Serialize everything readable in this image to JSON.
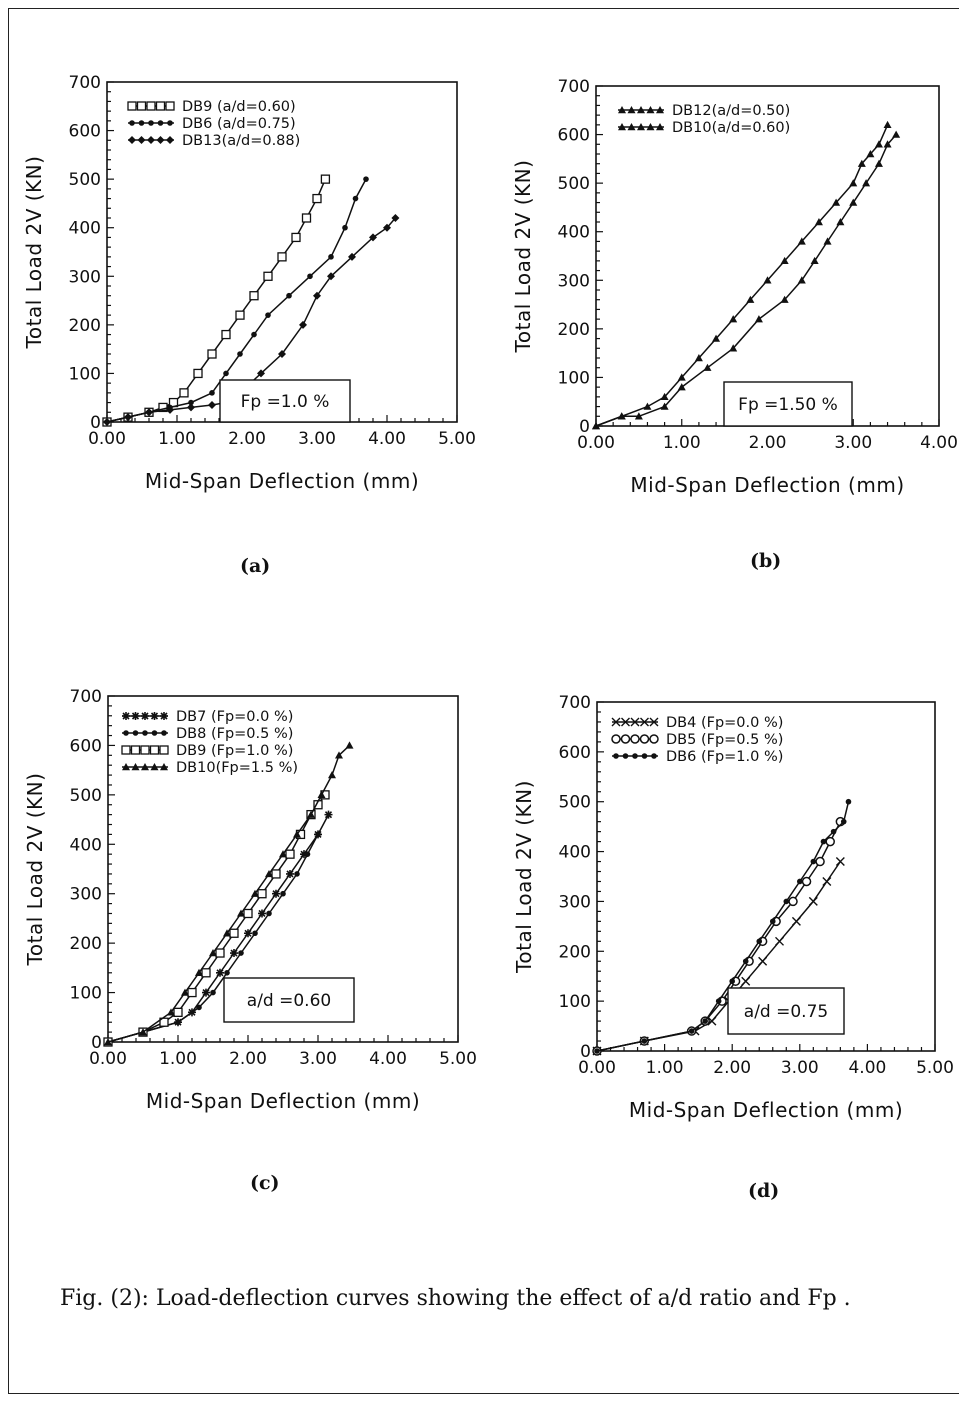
{
  "caption": "Fig. (2): Load-deflection curves showing the effect of a/d ratio and Fp .",
  "panel_labels": [
    "(a)",
    "(b)",
    "(c)",
    "(d)"
  ],
  "chart_data": [
    {
      "type": "line",
      "xlabel": "Mid-Span Deflection (mm)",
      "ylabel": "Total Load 2V (KN)",
      "xlim": [
        0,
        5
      ],
      "ylim": [
        0,
        700
      ],
      "xticks": [
        "0.00",
        "1.00",
        "2.00",
        "3.00",
        "4.00",
        "5.00"
      ],
      "yticks": [
        "0",
        "100",
        "200",
        "300",
        "400",
        "500",
        "600",
        "700"
      ],
      "legend_position": "top-left",
      "annotation": "Fp =1.0 %",
      "series": [
        {
          "name": "DB9 (a/d=0.60)",
          "marker": "square",
          "x": [
            0,
            0.3,
            0.6,
            0.8,
            0.95,
            1.1,
            1.3,
            1.5,
            1.7,
            1.9,
            2.1,
            2.3,
            2.5,
            2.7,
            2.85,
            3.0,
            3.12
          ],
          "y": [
            0,
            10,
            20,
            30,
            40,
            60,
            100,
            140,
            180,
            220,
            260,
            300,
            340,
            380,
            420,
            460,
            500
          ]
        },
        {
          "name": "DB6 (a/d=0.75)",
          "marker": "dot",
          "x": [
            0,
            0.3,
            0.6,
            0.9,
            1.2,
            1.5,
            1.7,
            1.9,
            2.1,
            2.3,
            2.6,
            2.9,
            3.2,
            3.4,
            3.55,
            3.7
          ],
          "y": [
            0,
            10,
            20,
            30,
            40,
            60,
            100,
            140,
            180,
            220,
            260,
            300,
            340,
            400,
            460,
            500
          ]
        },
        {
          "name": "DB13(a/d=0.88)",
          "marker": "diamond",
          "x": [
            0,
            0.3,
            0.6,
            0.9,
            1.2,
            1.5,
            1.7,
            1.9,
            2.2,
            2.5,
            2.8,
            3.0,
            3.2,
            3.5,
            3.8,
            4.0,
            4.12
          ],
          "y": [
            0,
            10,
            20,
            25,
            30,
            35,
            40,
            60,
            100,
            140,
            200,
            260,
            300,
            340,
            380,
            400,
            420
          ]
        }
      ]
    },
    {
      "type": "line",
      "xlabel": "Mid-Span Deflection (mm)",
      "ylabel": "Total Load 2V (KN)",
      "xlim": [
        0,
        4
      ],
      "ylim": [
        0,
        700
      ],
      "xticks": [
        "0.00",
        "1.00",
        "2.00",
        "3.00",
        "4.00"
      ],
      "yticks": [
        "0",
        "100",
        "200",
        "300",
        "400",
        "500",
        "600",
        "700"
      ],
      "legend_position": "top-left",
      "annotation": "Fp =1.50 %",
      "series": [
        {
          "name": "DB12(a/d=0.50)",
          "marker": "triangle",
          "x": [
            0,
            0.3,
            0.6,
            0.8,
            1.0,
            1.2,
            1.4,
            1.6,
            1.8,
            2.0,
            2.2,
            2.4,
            2.6,
            2.8,
            3.0,
            3.1,
            3.2,
            3.3,
            3.4
          ],
          "y": [
            0,
            20,
            40,
            60,
            100,
            140,
            180,
            220,
            260,
            300,
            340,
            380,
            420,
            460,
            500,
            540,
            560,
            580,
            620
          ]
        },
        {
          "name": "DB10(a/d=0.60)",
          "marker": "triangle",
          "x": [
            0,
            0.3,
            0.5,
            0.8,
            1.0,
            1.3,
            1.6,
            1.9,
            2.2,
            2.4,
            2.55,
            2.7,
            2.85,
            3.0,
            3.15,
            3.3,
            3.4,
            3.5
          ],
          "y": [
            0,
            20,
            20,
            40,
            80,
            120,
            160,
            220,
            260,
            300,
            340,
            380,
            420,
            460,
            500,
            540,
            580,
            600
          ]
        }
      ]
    },
    {
      "type": "line",
      "xlabel": "Mid-Span Deflection (mm)",
      "ylabel": "Total Load 2V (KN)",
      "xlim": [
        0,
        5
      ],
      "ylim": [
        0,
        700
      ],
      "xticks": [
        "0.00",
        "1.00",
        "2.00",
        "3.00",
        "4.00",
        "5.00"
      ],
      "yticks": [
        "0",
        "100",
        "200",
        "300",
        "400",
        "500",
        "600",
        "700"
      ],
      "legend_position": "top-left",
      "annotation": "a/d =0.60",
      "series": [
        {
          "name": "DB7 (Fp=0.0 %)",
          "marker": "star",
          "x": [
            0,
            0.5,
            1.0,
            1.2,
            1.4,
            1.6,
            1.8,
            2.0,
            2.2,
            2.4,
            2.6,
            2.8,
            3.0,
            3.15
          ],
          "y": [
            0,
            20,
            40,
            60,
            100,
            140,
            180,
            220,
            260,
            300,
            340,
            380,
            420,
            460
          ]
        },
        {
          "name": "DB8 (Fp=0.5 %)",
          "marker": "dot",
          "x": [
            0,
            0.5,
            1.0,
            1.3,
            1.5,
            1.7,
            1.9,
            2.1,
            2.3,
            2.5,
            2.7,
            2.85,
            3.0
          ],
          "y": [
            0,
            20,
            40,
            70,
            100,
            140,
            180,
            220,
            260,
            300,
            340,
            380,
            420
          ]
        },
        {
          "name": "DB9 (Fp=1.0 %)",
          "marker": "square",
          "x": [
            0,
            0.5,
            0.8,
            1.0,
            1.2,
            1.4,
            1.6,
            1.8,
            2.0,
            2.2,
            2.4,
            2.6,
            2.75,
            2.9,
            3.0,
            3.1
          ],
          "y": [
            0,
            20,
            40,
            60,
            100,
            140,
            180,
            220,
            260,
            300,
            340,
            380,
            420,
            460,
            480,
            500
          ]
        },
        {
          "name": "DB10(Fp=1.5 %)",
          "marker": "triangle",
          "x": [
            0,
            0.5,
            0.9,
            1.1,
            1.3,
            1.5,
            1.7,
            1.9,
            2.1,
            2.3,
            2.5,
            2.7,
            2.9,
            3.05,
            3.2,
            3.3,
            3.45
          ],
          "y": [
            0,
            20,
            60,
            100,
            140,
            180,
            220,
            260,
            300,
            340,
            380,
            420,
            460,
            500,
            540,
            580,
            600
          ]
        }
      ]
    },
    {
      "type": "line",
      "xlabel": "Mid-Span Deflection (mm)",
      "ylabel": "Total Load 2V (KN)",
      "xlim": [
        0,
        5
      ],
      "ylim": [
        0,
        700
      ],
      "xticks": [
        "0.00",
        "1.00",
        "2.00",
        "3.00",
        "4.00",
        "5.00"
      ],
      "yticks": [
        "0",
        "100",
        "200",
        "300",
        "400",
        "500",
        "600",
        "700"
      ],
      "legend_position": "top-left",
      "annotation": "a/d =0.75",
      "series": [
        {
          "name": "DB4 (Fp=0.0 %)",
          "marker": "x",
          "x": [
            0,
            0.7,
            1.45,
            1.7,
            1.95,
            2.2,
            2.45,
            2.7,
            2.95,
            3.2,
            3.4,
            3.6
          ],
          "y": [
            0,
            20,
            40,
            60,
            100,
            140,
            180,
            220,
            260,
            300,
            340,
            380
          ]
        },
        {
          "name": "DB5 (Fp=0.5 %)",
          "marker": "circle",
          "x": [
            0,
            0.7,
            1.4,
            1.6,
            1.85,
            2.05,
            2.25,
            2.45,
            2.65,
            2.9,
            3.1,
            3.3,
            3.45,
            3.6
          ],
          "y": [
            0,
            20,
            40,
            60,
            100,
            140,
            180,
            220,
            260,
            300,
            340,
            380,
            420,
            460
          ]
        },
        {
          "name": "DB6 (Fp=1.0 %)",
          "marker": "dot",
          "x": [
            0,
            0.7,
            1.4,
            1.6,
            1.8,
            2.0,
            2.2,
            2.4,
            2.6,
            2.8,
            3.0,
            3.2,
            3.35,
            3.5,
            3.65,
            3.72
          ],
          "y": [
            0,
            20,
            40,
            60,
            100,
            140,
            180,
            220,
            260,
            300,
            340,
            380,
            420,
            440,
            460,
            500
          ]
        }
      ]
    }
  ]
}
